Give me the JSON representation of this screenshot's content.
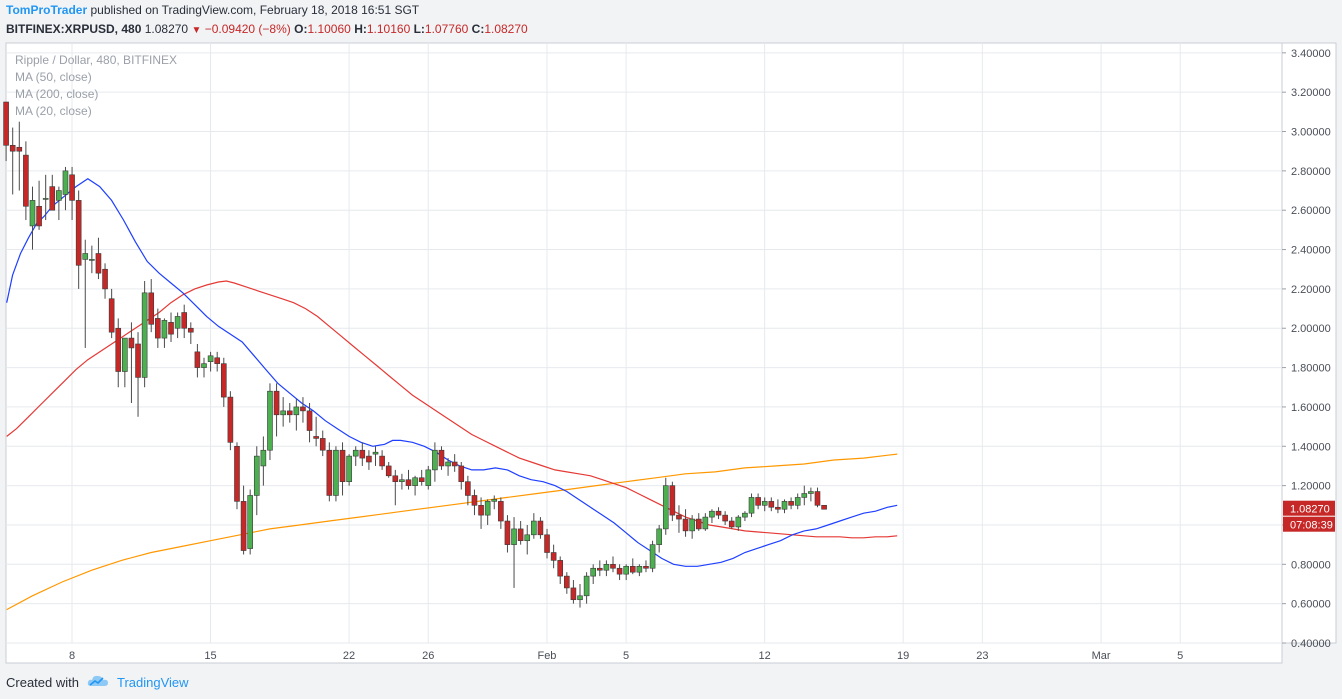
{
  "header": {
    "author": "TomProTrader",
    "published_text": "published on TradingView.com, February 18, 2018 16:51 SGT",
    "symbol": "BITFINEX:XRPUSD, 480",
    "last": "1.08270",
    "change": "−0.09420 (−8%)",
    "o_label": "O:",
    "o_value": "1.10060",
    "h_label": "H:",
    "h_value": "1.10160",
    "l_label": "L:",
    "l_value": "1.07760",
    "c_label": "C:",
    "c_value": "1.08270"
  },
  "legend": {
    "title": "Ripple / Dollar, 480, BITFINEX",
    "ma50": "MA (50, close)",
    "ma200": "MA (200, close)",
    "ma20": "MA (20, close)"
  },
  "footer": {
    "created_with": "Created with",
    "brand": "TradingView"
  },
  "colors": {
    "up": "#4caf50",
    "down": "#c62828",
    "ma20": "#1e3fff",
    "ma50": "#e53935",
    "ma200": "#ff9800",
    "grid": "#e6eaee",
    "price_label_bg": "#c62828"
  },
  "chart_data": {
    "type": "candlestick",
    "ylim": [
      0.4,
      3.45
    ],
    "y_ticks": [
      "3.40000",
      "3.20000",
      "3.00000",
      "2.80000",
      "2.60000",
      "2.40000",
      "2.20000",
      "2.00000",
      "1.80000",
      "1.60000",
      "1.40000",
      "1.20000",
      "1.00000",
      "0.80000",
      "0.60000",
      "0.40000"
    ],
    "x_ticks": [
      {
        "label": "8",
        "day": 8
      },
      {
        "label": "15",
        "day": 15
      },
      {
        "label": "22",
        "day": 22
      },
      {
        "label": "26",
        "day": 26
      },
      {
        "label": "Feb",
        "day": 32
      },
      {
        "label": "5",
        "day": 36
      },
      {
        "label": "12",
        "day": 43
      },
      {
        "label": "19",
        "day": 50
      },
      {
        "label": "23",
        "day": 54
      },
      {
        "label": "Mar",
        "day": 60
      },
      {
        "label": "5",
        "day": 64
      }
    ],
    "start_day": 4.67,
    "candles": [
      [
        3.15,
        3.15,
        2.85,
        2.93
      ],
      [
        2.93,
        3.02,
        2.68,
        2.9
      ],
      [
        2.92,
        3.05,
        2.7,
        2.9
      ],
      [
        2.88,
        2.95,
        2.55,
        2.62
      ],
      [
        2.52,
        2.72,
        2.4,
        2.65
      ],
      [
        2.62,
        2.75,
        2.5,
        2.52
      ],
      [
        2.66,
        2.78,
        2.55,
        2.66
      ],
      [
        2.72,
        2.78,
        2.6,
        2.6
      ],
      [
        2.65,
        2.72,
        2.55,
        2.7
      ],
      [
        2.68,
        2.82,
        2.6,
        2.8
      ],
      [
        2.78,
        2.82,
        2.55,
        2.65
      ],
      [
        2.65,
        2.7,
        2.2,
        2.32
      ],
      [
        2.35,
        2.45,
        1.9,
        2.38
      ],
      [
        2.35,
        2.42,
        2.28,
        2.35
      ],
      [
        2.38,
        2.46,
        2.25,
        2.28
      ],
      [
        2.3,
        2.33,
        2.15,
        2.2
      ],
      [
        2.15,
        2.2,
        1.95,
        1.98
      ],
      [
        2.0,
        2.05,
        1.7,
        1.78
      ],
      [
        1.78,
        1.95,
        1.7,
        1.95
      ],
      [
        1.95,
        2.03,
        1.62,
        1.9
      ],
      [
        1.92,
        1.98,
        1.55,
        1.75
      ],
      [
        1.75,
        2.24,
        1.7,
        2.18
      ],
      [
        2.18,
        2.25,
        1.98,
        2.02
      ],
      [
        2.05,
        2.1,
        1.9,
        1.95
      ],
      [
        1.95,
        2.05,
        1.9,
        2.04
      ],
      [
        2.03,
        2.08,
        1.93,
        1.97
      ],
      [
        2.0,
        2.08,
        1.95,
        2.06
      ],
      [
        2.08,
        2.12,
        1.95,
        2.0
      ],
      [
        2.0,
        2.03,
        1.92,
        1.98
      ],
      [
        1.88,
        1.92,
        1.75,
        1.8
      ],
      [
        1.8,
        1.85,
        1.75,
        1.82
      ],
      [
        1.83,
        1.88,
        1.78,
        1.86
      ],
      [
        1.85,
        1.88,
        1.78,
        1.82
      ],
      [
        1.82,
        1.85,
        1.6,
        1.65
      ],
      [
        1.65,
        1.68,
        1.38,
        1.42
      ],
      [
        1.4,
        1.42,
        1.08,
        1.12
      ],
      [
        1.12,
        1.2,
        0.85,
        0.87
      ],
      [
        0.88,
        1.18,
        0.85,
        1.15
      ],
      [
        1.15,
        1.4,
        1.05,
        1.35
      ],
      [
        1.3,
        1.45,
        1.2,
        1.38
      ],
      [
        1.38,
        1.72,
        1.33,
        1.68
      ],
      [
        1.68,
        1.72,
        1.45,
        1.56
      ],
      [
        1.56,
        1.65,
        1.5,
        1.58
      ],
      [
        1.58,
        1.62,
        1.52,
        1.56
      ],
      [
        1.56,
        1.64,
        1.48,
        1.6
      ],
      [
        1.6,
        1.65,
        1.52,
        1.58
      ],
      [
        1.58,
        1.62,
        1.42,
        1.48
      ],
      [
        1.45,
        1.55,
        1.4,
        1.44
      ],
      [
        1.44,
        1.48,
        1.35,
        1.38
      ],
      [
        1.38,
        1.42,
        1.12,
        1.15
      ],
      [
        1.15,
        1.4,
        1.12,
        1.38
      ],
      [
        1.38,
        1.42,
        1.15,
        1.22
      ],
      [
        1.22,
        1.36,
        1.2,
        1.35
      ],
      [
        1.35,
        1.4,
        1.3,
        1.38
      ],
      [
        1.38,
        1.42,
        1.3,
        1.34
      ],
      [
        1.35,
        1.38,
        1.28,
        1.32
      ],
      [
        1.36,
        1.4,
        1.3,
        1.37
      ],
      [
        1.35,
        1.38,
        1.28,
        1.3
      ],
      [
        1.3,
        1.32,
        1.24,
        1.25
      ],
      [
        1.25,
        1.28,
        1.1,
        1.22
      ],
      [
        1.22,
        1.26,
        1.18,
        1.23
      ],
      [
        1.23,
        1.28,
        1.18,
        1.2
      ],
      [
        1.2,
        1.25,
        1.15,
        1.24
      ],
      [
        1.24,
        1.28,
        1.2,
        1.22
      ],
      [
        1.2,
        1.3,
        1.18,
        1.28
      ],
      [
        1.28,
        1.42,
        1.22,
        1.38
      ],
      [
        1.38,
        1.4,
        1.28,
        1.3
      ],
      [
        1.3,
        1.34,
        1.25,
        1.32
      ],
      [
        1.32,
        1.36,
        1.27,
        1.3
      ],
      [
        1.3,
        1.32,
        1.18,
        1.22
      ],
      [
        1.22,
        1.25,
        1.1,
        1.15
      ],
      [
        1.15,
        1.18,
        1.05,
        1.1
      ],
      [
        1.1,
        1.14,
        0.98,
        1.05
      ],
      [
        1.05,
        1.13,
        1.0,
        1.12
      ],
      [
        1.12,
        1.15,
        1.08,
        1.13
      ],
      [
        1.12,
        1.14,
        0.98,
        1.02
      ],
      [
        1.02,
        1.05,
        0.86,
        0.9
      ],
      [
        0.9,
        1.04,
        0.68,
        0.98
      ],
      [
        0.98,
        1.02,
        0.9,
        0.92
      ],
      [
        0.92,
        1.0,
        0.85,
        0.95
      ],
      [
        0.95,
        1.06,
        0.93,
        1.02
      ],
      [
        1.02,
        1.04,
        0.93,
        0.95
      ],
      [
        0.95,
        0.98,
        0.83,
        0.86
      ],
      [
        0.86,
        0.9,
        0.78,
        0.82
      ],
      [
        0.82,
        0.84,
        0.7,
        0.74
      ],
      [
        0.74,
        0.76,
        0.65,
        0.68
      ],
      [
        0.68,
        0.72,
        0.6,
        0.62
      ],
      [
        0.62,
        0.7,
        0.58,
        0.64
      ],
      [
        0.64,
        0.76,
        0.6,
        0.74
      ],
      [
        0.74,
        0.8,
        0.7,
        0.78
      ],
      [
        0.78,
        0.82,
        0.74,
        0.77
      ],
      [
        0.77,
        0.82,
        0.74,
        0.8
      ],
      [
        0.8,
        0.84,
        0.76,
        0.78
      ],
      [
        0.78,
        0.8,
        0.72,
        0.75
      ],
      [
        0.75,
        0.8,
        0.72,
        0.79
      ],
      [
        0.79,
        0.83,
        0.75,
        0.76
      ],
      [
        0.76,
        0.8,
        0.74,
        0.79
      ],
      [
        0.79,
        0.82,
        0.76,
        0.78
      ],
      [
        0.78,
        0.92,
        0.76,
        0.9
      ],
      [
        0.9,
        1.0,
        0.86,
        0.98
      ],
      [
        0.98,
        1.24,
        0.95,
        1.2
      ],
      [
        1.2,
        1.22,
        1.02,
        1.05
      ],
      [
        1.05,
        1.1,
        0.96,
        1.03
      ],
      [
        1.03,
        1.08,
        0.94,
        0.97
      ],
      [
        0.97,
        1.05,
        0.93,
        1.03
      ],
      [
        1.03,
        1.06,
        0.97,
        0.98
      ],
      [
        0.98,
        1.06,
        0.97,
        1.04
      ],
      [
        1.04,
        1.08,
        1.01,
        1.07
      ],
      [
        1.07,
        1.09,
        1.03,
        1.05
      ],
      [
        1.05,
        1.07,
        1.0,
        1.02
      ],
      [
        1.02,
        1.04,
        0.98,
        0.99
      ],
      [
        0.99,
        1.05,
        0.97,
        1.04
      ],
      [
        1.04,
        1.07,
        1.02,
        1.06
      ],
      [
        1.06,
        1.16,
        1.04,
        1.14
      ],
      [
        1.14,
        1.16,
        1.08,
        1.1
      ],
      [
        1.1,
        1.14,
        1.07,
        1.12
      ],
      [
        1.12,
        1.14,
        1.07,
        1.09
      ],
      [
        1.09,
        1.13,
        1.06,
        1.08
      ],
      [
        1.08,
        1.13,
        1.06,
        1.12
      ],
      [
        1.12,
        1.14,
        1.08,
        1.1
      ],
      [
        1.1,
        1.16,
        1.08,
        1.14
      ],
      [
        1.14,
        1.2,
        1.1,
        1.16
      ],
      [
        1.16,
        1.19,
        1.12,
        1.17
      ],
      [
        1.17,
        1.19,
        1.09,
        1.1
      ],
      [
        1.1,
        1.1,
        1.08,
        1.08
      ]
    ],
    "ma20": [
      [
        4.7,
        2.13
      ],
      [
        5.0,
        2.27
      ],
      [
        5.4,
        2.38
      ],
      [
        5.8,
        2.46
      ],
      [
        6.2,
        2.53
      ],
      [
        6.6,
        2.57
      ],
      [
        7.0,
        2.62
      ],
      [
        7.6,
        2.67
      ],
      [
        8.2,
        2.72
      ],
      [
        8.8,
        2.76
      ],
      [
        9.4,
        2.72
      ],
      [
        10.0,
        2.65
      ],
      [
        10.6,
        2.55
      ],
      [
        11.2,
        2.44
      ],
      [
        11.8,
        2.34
      ],
      [
        12.4,
        2.28
      ],
      [
        13.0,
        2.23
      ],
      [
        13.6,
        2.18
      ],
      [
        14.2,
        2.12
      ],
      [
        14.8,
        2.06
      ],
      [
        15.4,
        2.01
      ],
      [
        16.0,
        1.97
      ],
      [
        16.6,
        1.93
      ],
      [
        17.2,
        1.86
      ],
      [
        17.8,
        1.79
      ],
      [
        18.4,
        1.72
      ],
      [
        19.0,
        1.67
      ],
      [
        19.6,
        1.62
      ],
      [
        20.2,
        1.58
      ],
      [
        20.8,
        1.53
      ],
      [
        21.4,
        1.49
      ],
      [
        22.0,
        1.45
      ],
      [
        22.6,
        1.42
      ],
      [
        23.2,
        1.4
      ],
      [
        23.8,
        1.41
      ],
      [
        24.2,
        1.43
      ],
      [
        24.6,
        1.43
      ],
      [
        25.2,
        1.42
      ],
      [
        25.8,
        1.4
      ],
      [
        26.4,
        1.37
      ],
      [
        27.0,
        1.33
      ],
      [
        27.6,
        1.3
      ],
      [
        28.2,
        1.28
      ],
      [
        28.8,
        1.28
      ],
      [
        29.4,
        1.29
      ],
      [
        30.0,
        1.28
      ],
      [
        30.6,
        1.25
      ],
      [
        31.2,
        1.23
      ],
      [
        31.8,
        1.22
      ],
      [
        32.4,
        1.2
      ],
      [
        33.0,
        1.17
      ],
      [
        33.6,
        1.13
      ],
      [
        34.2,
        1.09
      ],
      [
        34.8,
        1.05
      ],
      [
        35.4,
        1.01
      ],
      [
        36.0,
        0.96
      ],
      [
        36.6,
        0.91
      ],
      [
        37.2,
        0.87
      ],
      [
        37.8,
        0.83
      ],
      [
        38.4,
        0.8
      ],
      [
        39.0,
        0.79
      ],
      [
        39.6,
        0.79
      ],
      [
        40.2,
        0.8
      ],
      [
        40.8,
        0.81
      ],
      [
        41.4,
        0.83
      ],
      [
        42.0,
        0.86
      ],
      [
        42.6,
        0.88
      ],
      [
        43.2,
        0.9
      ],
      [
        43.8,
        0.92
      ],
      [
        44.4,
        0.95
      ],
      [
        45.0,
        0.97
      ],
      [
        45.6,
        0.98
      ],
      [
        46.2,
        1.0
      ],
      [
        46.8,
        1.02
      ],
      [
        47.4,
        1.04
      ],
      [
        48.0,
        1.06
      ],
      [
        48.6,
        1.07
      ],
      [
        49.2,
        1.09
      ],
      [
        49.7,
        1.1
      ]
    ],
    "ma50": [
      [
        4.7,
        1.45
      ],
      [
        5.2,
        1.49
      ],
      [
        5.8,
        1.55
      ],
      [
        6.4,
        1.61
      ],
      [
        7.0,
        1.67
      ],
      [
        7.6,
        1.73
      ],
      [
        8.2,
        1.79
      ],
      [
        8.8,
        1.84
      ],
      [
        9.4,
        1.88
      ],
      [
        10.0,
        1.92
      ],
      [
        10.6,
        1.96
      ],
      [
        11.2,
        2.0
      ],
      [
        11.8,
        2.04
      ],
      [
        12.4,
        2.08
      ],
      [
        13.0,
        2.13
      ],
      [
        13.6,
        2.17
      ],
      [
        14.2,
        2.2
      ],
      [
        14.8,
        2.22
      ],
      [
        15.4,
        2.235
      ],
      [
        15.8,
        2.24
      ],
      [
        16.2,
        2.23
      ],
      [
        16.8,
        2.21
      ],
      [
        17.4,
        2.19
      ],
      [
        18.0,
        2.17
      ],
      [
        18.6,
        2.15
      ],
      [
        19.2,
        2.13
      ],
      [
        19.8,
        2.1
      ],
      [
        20.4,
        2.06
      ],
      [
        21.0,
        2.01
      ],
      [
        21.6,
        1.96
      ],
      [
        22.2,
        1.91
      ],
      [
        22.8,
        1.86
      ],
      [
        23.4,
        1.81
      ],
      [
        24.0,
        1.76
      ],
      [
        24.6,
        1.71
      ],
      [
        25.2,
        1.66
      ],
      [
        25.8,
        1.62
      ],
      [
        26.4,
        1.58
      ],
      [
        27.0,
        1.54
      ],
      [
        27.6,
        1.5
      ],
      [
        28.2,
        1.46
      ],
      [
        28.8,
        1.43
      ],
      [
        29.4,
        1.4
      ],
      [
        30.0,
        1.37
      ],
      [
        30.6,
        1.34
      ],
      [
        31.2,
        1.32
      ],
      [
        31.8,
        1.3
      ],
      [
        32.4,
        1.28
      ],
      [
        33.0,
        1.27
      ],
      [
        33.6,
        1.26
      ],
      [
        34.2,
        1.25
      ],
      [
        34.8,
        1.23
      ],
      [
        35.4,
        1.21
      ],
      [
        36.0,
        1.19
      ],
      [
        36.6,
        1.16
      ],
      [
        37.2,
        1.13
      ],
      [
        37.8,
        1.1
      ],
      [
        38.4,
        1.07
      ],
      [
        39.0,
        1.04
      ],
      [
        39.6,
        1.02
      ],
      [
        40.2,
        1.0
      ],
      [
        40.8,
        0.99
      ],
      [
        41.4,
        0.98
      ],
      [
        42.0,
        0.97
      ],
      [
        42.6,
        0.965
      ],
      [
        43.2,
        0.96
      ],
      [
        43.8,
        0.955
      ],
      [
        44.4,
        0.95
      ],
      [
        45.0,
        0.945
      ],
      [
        45.6,
        0.94
      ],
      [
        46.2,
        0.94
      ],
      [
        46.8,
        0.94
      ],
      [
        47.4,
        0.935
      ],
      [
        48.0,
        0.935
      ],
      [
        48.6,
        0.94
      ],
      [
        49.2,
        0.94
      ],
      [
        49.7,
        0.945
      ]
    ],
    "ma200": [
      [
        4.7,
        0.57
      ],
      [
        6.0,
        0.64
      ],
      [
        7.5,
        0.71
      ],
      [
        9.0,
        0.77
      ],
      [
        10.5,
        0.82
      ],
      [
        12.0,
        0.86
      ],
      [
        13.5,
        0.89
      ],
      [
        15.0,
        0.92
      ],
      [
        16.5,
        0.95
      ],
      [
        18.0,
        0.98
      ],
      [
        19.5,
        1.0
      ],
      [
        21.0,
        1.02
      ],
      [
        22.5,
        1.04
      ],
      [
        24.0,
        1.06
      ],
      [
        25.5,
        1.08
      ],
      [
        27.0,
        1.1
      ],
      [
        28.5,
        1.12
      ],
      [
        30.0,
        1.14
      ],
      [
        31.5,
        1.16
      ],
      [
        33.0,
        1.18
      ],
      [
        34.5,
        1.2
      ],
      [
        36.0,
        1.22
      ],
      [
        37.5,
        1.24
      ],
      [
        39.0,
        1.26
      ],
      [
        40.5,
        1.27
      ],
      [
        42.0,
        1.29
      ],
      [
        43.5,
        1.3
      ],
      [
        45.0,
        1.31
      ],
      [
        46.5,
        1.33
      ],
      [
        48.0,
        1.34
      ],
      [
        49.7,
        1.36
      ]
    ],
    "last_price_label": "1.08270",
    "countdown_label": "07:08:39"
  }
}
